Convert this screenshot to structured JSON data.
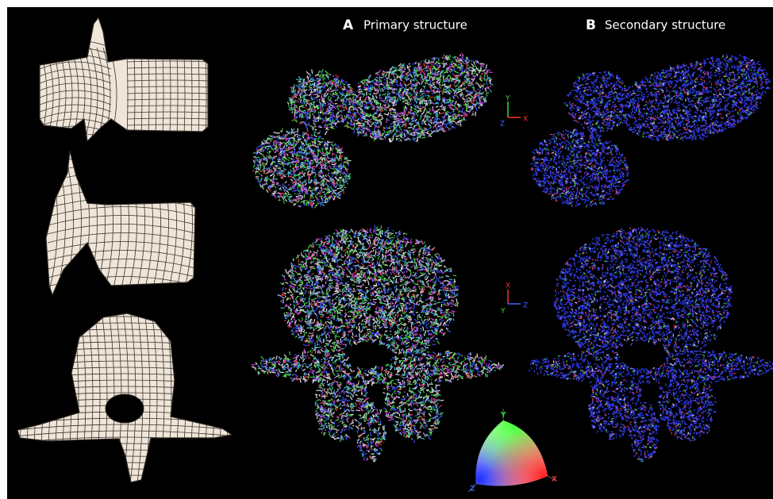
{
  "panels": [
    {
      "letter": "A",
      "title": "Primary structure"
    },
    {
      "letter": "B",
      "title": "Secondary structure"
    }
  ],
  "axis_triads": [
    {
      "up": "Y",
      "right": "X",
      "out": "Z"
    },
    {
      "up": "X",
      "right": "Z",
      "down": "Y"
    }
  ],
  "color_key": {
    "top": "Y",
    "left": "Z",
    "right": "X"
  }
}
